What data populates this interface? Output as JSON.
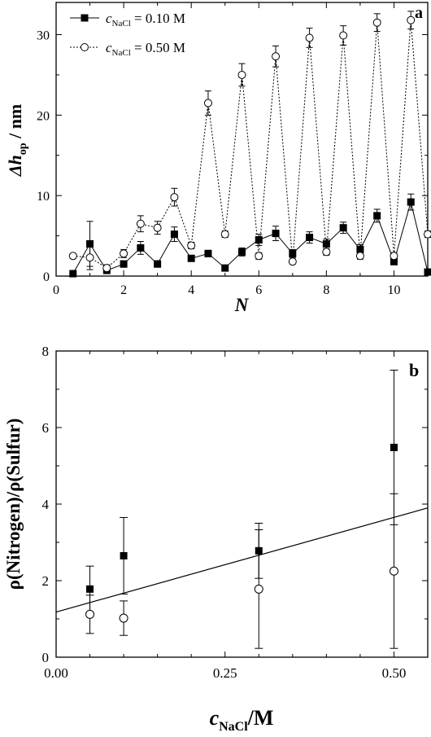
{
  "chart_data": [
    {
      "panel_label": "a",
      "type": "line",
      "xlabel": "N",
      "ylabel": {
        "main": "Δh",
        "sub": "op",
        "unit": " / nm"
      },
      "xlim": [
        0,
        11
      ],
      "ylim": [
        0,
        34
      ],
      "xticks": [
        "0",
        "2",
        "4",
        "6",
        "8",
        "10"
      ],
      "yticks": [
        "0",
        "10",
        "20",
        "30"
      ],
      "legend_position": "top-left",
      "series": [
        {
          "name": {
            "c": "c",
            "sub": "NaCl",
            "value": " = 0.10 M"
          },
          "marker": "filled-square",
          "line": "solid",
          "x": [
            0.5,
            1.0,
            1.5,
            2.0,
            2.5,
            3.0,
            3.5,
            4.0,
            4.5,
            5.0,
            5.5,
            6.0,
            6.5,
            7.0,
            7.5,
            8.0,
            8.5,
            9.0,
            9.5,
            10.0,
            10.5,
            11.0
          ],
          "y": [
            0.3,
            4.0,
            0.7,
            1.5,
            3.5,
            1.5,
            5.2,
            2.2,
            2.8,
            1.0,
            3.0,
            4.5,
            5.3,
            2.8,
            4.8,
            4.0,
            6.0,
            3.3,
            7.5,
            1.8,
            9.2,
            0.5
          ],
          "err": [
            0.2,
            2.8,
            0.3,
            0.4,
            0.8,
            0.4,
            0.9,
            0.3,
            0.4,
            0.3,
            0.5,
            0.7,
            0.9,
            0.5,
            0.7,
            0.6,
            0.7,
            0.6,
            0.8,
            0.4,
            1.0,
            0.2
          ]
        },
        {
          "name": {
            "c": "c",
            "sub": "NaCl",
            "value": " = 0.50 M"
          },
          "marker": "open-circle",
          "line": "dotted",
          "x": [
            0.5,
            1.0,
            1.5,
            2.0,
            2.5,
            3.0,
            3.5,
            4.0,
            4.5,
            5.0,
            5.5,
            6.0,
            6.5,
            7.0,
            7.5,
            8.0,
            8.5,
            9.0,
            9.5,
            10.0,
            10.5,
            11.0
          ],
          "y": [
            2.5,
            2.3,
            1.0,
            2.8,
            6.5,
            6.0,
            9.8,
            3.8,
            21.5,
            5.2,
            25.0,
            2.5,
            27.3,
            1.8,
            29.6,
            3.0,
            29.9,
            2.5,
            31.5,
            2.5,
            31.8,
            5.2
          ],
          "err": [
            0.3,
            1.5,
            0.4,
            0.5,
            1.0,
            0.8,
            1.1,
            0.4,
            1.5,
            0.4,
            1.4,
            0.4,
            1.3,
            0.3,
            1.2,
            0.4,
            1.2,
            0.4,
            1.1,
            0.4,
            1.1,
            0.4
          ]
        }
      ]
    },
    {
      "panel_label": "b",
      "type": "scatter",
      "xlabel": {
        "c": "c",
        "sub": "NaCl",
        "unit": "/M"
      },
      "ylabel": "ρ(Nitrogen)/ρ(Sulfur)",
      "xlim": [
        0.0,
        0.55
      ],
      "ylim": [
        0,
        8
      ],
      "xticks": [
        "0.00",
        "0.25",
        "0.50"
      ],
      "yticks": [
        "0",
        "2",
        "4",
        "6",
        "8"
      ],
      "series": [
        {
          "marker": "filled-square",
          "x": [
            0.05,
            0.1,
            0.3,
            0.5
          ],
          "y": [
            1.78,
            2.65,
            2.78,
            5.48
          ],
          "err": [
            0.6,
            1.0,
            0.72,
            2.02
          ]
        },
        {
          "marker": "open-circle",
          "x": [
            0.05,
            0.1,
            0.3,
            0.5
          ],
          "y": [
            1.12,
            1.02,
            1.78,
            2.25
          ],
          "err": [
            0.5,
            0.45,
            1.55,
            2.02
          ]
        }
      ],
      "fit_line": {
        "x": [
          0.0,
          0.55
        ],
        "y": [
          1.18,
          3.9
        ]
      }
    }
  ]
}
